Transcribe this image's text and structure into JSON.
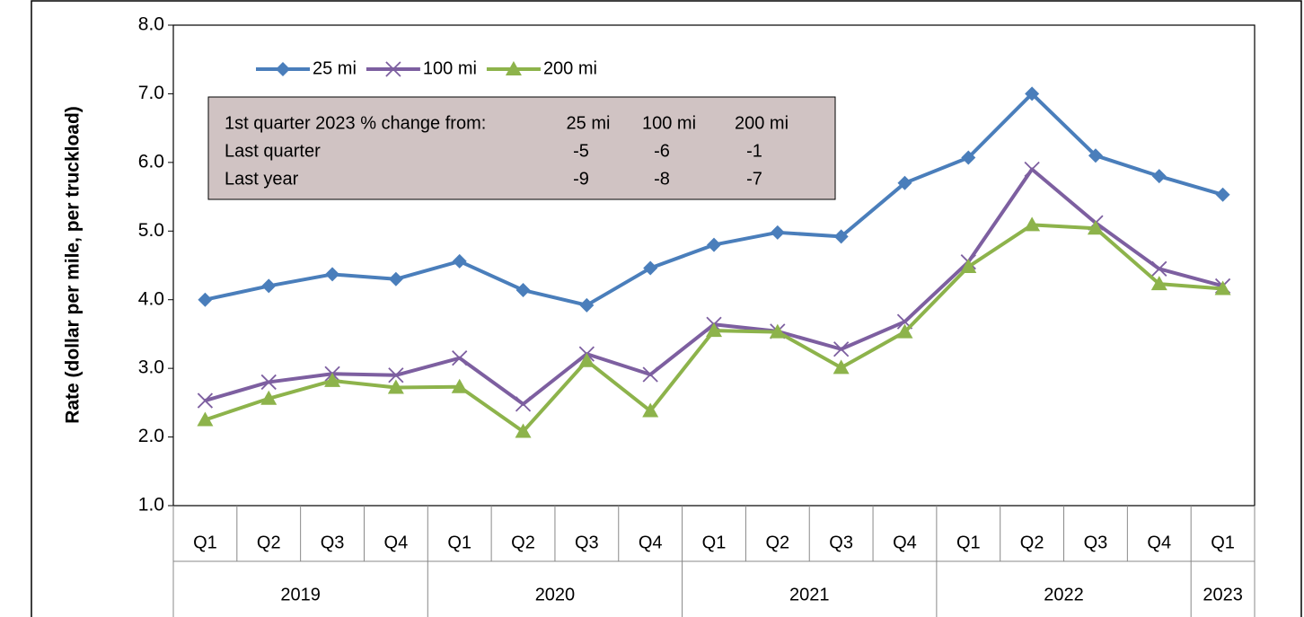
{
  "chart_data": {
    "type": "line",
    "y_axis_label": "Rate (dollar per mile, per truckload)",
    "categories": [
      "Q1",
      "Q2",
      "Q3",
      "Q4",
      "Q1",
      "Q2",
      "Q3",
      "Q4",
      "Q1",
      "Q2",
      "Q3",
      "Q4",
      "Q1",
      "Q2",
      "Q3",
      "Q4",
      "Q1"
    ],
    "categories2": [
      "2019",
      null,
      null,
      null,
      "2020",
      null,
      null,
      null,
      "2021",
      null,
      null,
      null,
      "2022",
      null,
      null,
      null,
      "2023"
    ],
    "series": [
      {
        "name": "25 mi",
        "color": "#4a7ebb",
        "marker": "diamond",
        "values": [
          4.0,
          4.2,
          4.37,
          4.3,
          4.56,
          4.14,
          3.92,
          4.46,
          4.8,
          4.98,
          4.92,
          5.7,
          6.07,
          7.0,
          6.1,
          5.8,
          5.53
        ]
      },
      {
        "name": "100 mi",
        "color": "#7d5fa0",
        "marker": "x",
        "values": [
          2.53,
          2.8,
          2.92,
          2.9,
          3.15,
          2.48,
          3.21,
          2.91,
          3.64,
          3.54,
          3.28,
          3.68,
          4.55,
          5.9,
          5.12,
          4.45,
          4.2
        ]
      },
      {
        "name": "200 mi",
        "color": "#8db34b",
        "marker": "triangle",
        "values": [
          2.25,
          2.56,
          2.82,
          2.72,
          2.73,
          2.08,
          3.11,
          2.38,
          3.55,
          3.53,
          3.01,
          3.53,
          4.48,
          5.09,
          5.04,
          4.23,
          4.16
        ]
      }
    ],
    "ylim": [
      1,
      8
    ],
    "yticks": [
      {
        "value": 1,
        "label": "1.0"
      },
      {
        "value": 2,
        "label": "2.0"
      },
      {
        "value": 3,
        "label": "3.0"
      },
      {
        "value": 4,
        "label": "4.0"
      },
      {
        "value": 5,
        "label": "5.0"
      },
      {
        "value": 6,
        "label": "6.0"
      },
      {
        "value": 7,
        "label": "7.0"
      },
      {
        "value": 8,
        "label": "8.0"
      }
    ],
    "grid": false,
    "legend": "top-left",
    "annotation_table": {
      "header": [
        "1st quarter 2023  % change from:",
        "25 mi",
        "100 mi",
        "200 mi"
      ],
      "rows": [
        {
          "label": "Last quarter",
          "values": [
            -5,
            -6,
            -1
          ]
        },
        {
          "label": "Last year",
          "values": [
            -9,
            -8,
            -7
          ]
        }
      ]
    }
  }
}
